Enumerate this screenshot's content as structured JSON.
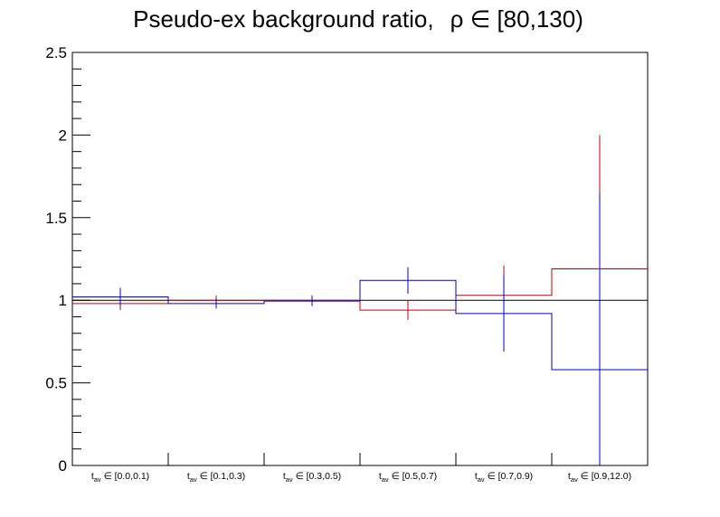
{
  "chart_data": {
    "type": "line",
    "title": "Pseudo-ex background ratio,",
    "title_math": "ρ ∈ [80,130)",
    "xlabel": "",
    "ylabel": "",
    "ylim": [
      0,
      2.5
    ],
    "y_major_ticks": [
      0,
      0.5,
      1,
      1.5,
      2,
      2.5
    ],
    "y_tick_labels": [
      "0",
      "0.5",
      "1",
      "1.5",
      "2",
      "2.5"
    ],
    "y_minor_step": 0.1,
    "categories": [
      {
        "base": "t",
        "sub": "av",
        "range": " ∈ [0.0,0.1)"
      },
      {
        "base": "t",
        "sub": "av",
        "range": " ∈ [0.1,0.3)"
      },
      {
        "base": "t",
        "sub": "av",
        "range": " ∈ [0.3,0.5)"
      },
      {
        "base": "t",
        "sub": "av",
        "range": " ∈ [0.5,0.7)"
      },
      {
        "base": "t",
        "sub": "av",
        "range": " ∈ [0.7,0.9)"
      },
      {
        "base": "t",
        "sub": "av",
        "range": " ∈ [0.9,12.0)"
      }
    ],
    "reference_line": 1,
    "grid": false,
    "legend": "none",
    "series": [
      {
        "color": "#cc0000",
        "values": [
          0.98,
          1.0,
          1.0,
          0.94,
          1.03,
          1.19
        ],
        "errors": [
          0.04,
          0.03,
          0.03,
          0.06,
          0.18,
          0.81
        ]
      },
      {
        "color": "#0000cc",
        "values": [
          1.02,
          0.98,
          0.995,
          1.12,
          0.92,
          0.58
        ],
        "errors": [
          0.055,
          0.03,
          0.03,
          0.08,
          0.23,
          1.07
        ]
      }
    ]
  }
}
